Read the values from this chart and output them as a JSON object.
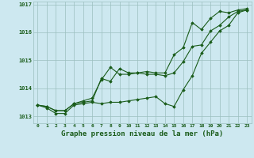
{
  "xlabel": "Graphe pression niveau de la mer (hPa)",
  "background_color": "#cde8f0",
  "plot_background_color": "#cde8f0",
  "grid_color": "#9bbfbf",
  "line_color": "#1a5c1a",
  "marker_color": "#1a5c1a",
  "ylim": [
    1012.75,
    1017.1
  ],
  "xlim": [
    -0.5,
    23.5
  ],
  "yticks": [
    1013,
    1014,
    1015,
    1016,
    1017
  ],
  "xticks": [
    0,
    1,
    2,
    3,
    4,
    5,
    6,
    7,
    8,
    9,
    10,
    11,
    12,
    13,
    14,
    15,
    16,
    17,
    18,
    19,
    20,
    21,
    22,
    23
  ],
  "series1": [
    1013.4,
    1013.35,
    1013.2,
    1013.2,
    1013.45,
    1013.5,
    1013.55,
    1014.35,
    1014.25,
    1014.7,
    1014.55,
    1014.55,
    1014.5,
    1014.5,
    1014.45,
    1014.55,
    1014.95,
    1015.5,
    1015.55,
    1016.05,
    1016.25,
    1016.55,
    1016.75,
    1016.8
  ],
  "series2": [
    1013.4,
    1013.3,
    1013.1,
    1013.1,
    1013.4,
    1013.45,
    1013.5,
    1013.45,
    1013.5,
    1013.5,
    1013.55,
    1013.6,
    1013.65,
    1013.7,
    1013.45,
    1013.35,
    1013.95,
    1014.45,
    1015.25,
    1015.65,
    1016.05,
    1016.25,
    1016.7,
    1016.8
  ],
  "series3": [
    1013.4,
    1013.35,
    1013.2,
    1013.2,
    1013.45,
    1013.55,
    1013.65,
    1014.3,
    1014.75,
    1014.5,
    1014.5,
    1014.55,
    1014.6,
    1014.55,
    1014.55,
    1015.2,
    1015.45,
    1016.35,
    1016.1,
    1016.5,
    1016.75,
    1016.7,
    1016.8,
    1016.85
  ]
}
